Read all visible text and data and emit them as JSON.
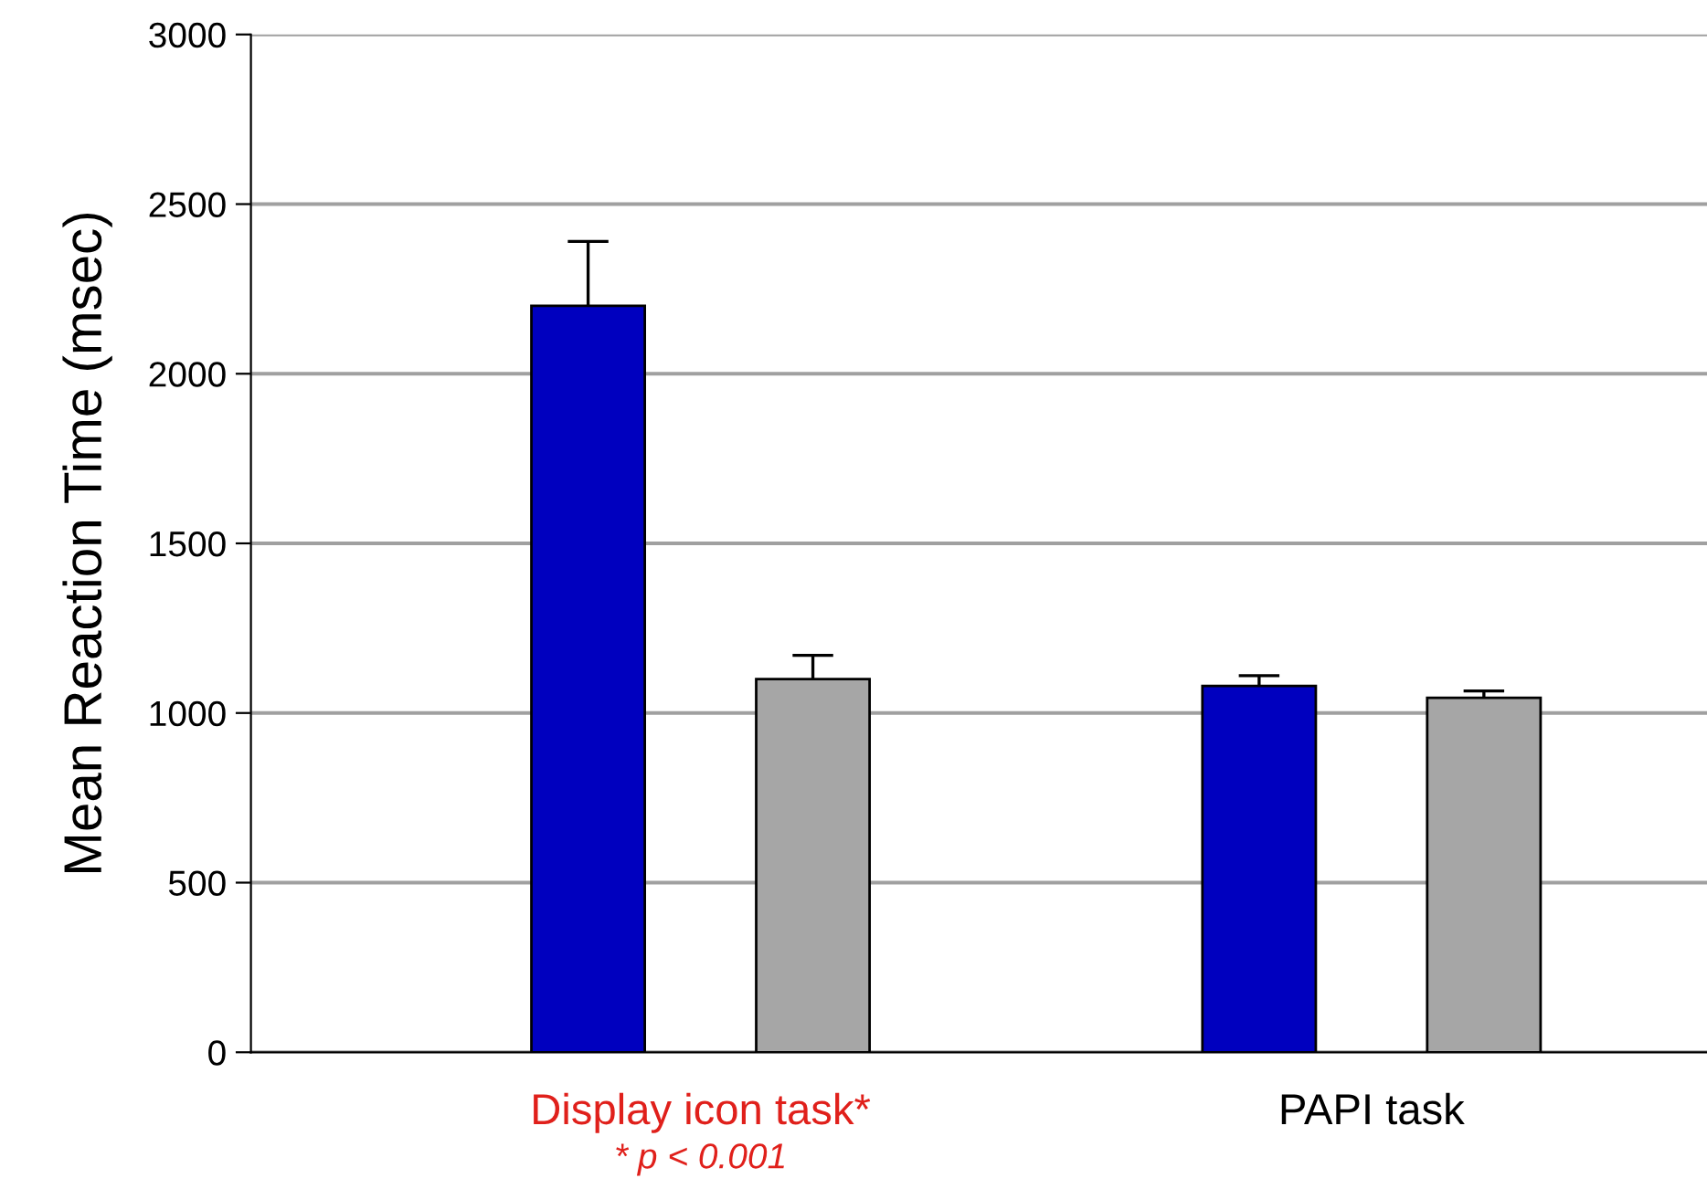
{
  "chart_data": {
    "type": "bar",
    "ylabel": "Mean Reaction Time (msec)",
    "categories": [
      "Display icon task*",
      "PAPI task"
    ],
    "series": [
      {
        "color": "#0000bf",
        "values": [
          2200,
          1080
        ],
        "errors": [
          [
            2200,
            2390
          ],
          [
            1080,
            1110
          ]
        ]
      },
      {
        "color": "#a6a6a6",
        "values": [
          1100,
          1045
        ],
        "errors": [
          [
            1100,
            1170
          ],
          [
            1045,
            1065
          ]
        ]
      }
    ],
    "ylim": [
      0,
      3000
    ],
    "yticks": [
      0,
      500,
      1000,
      1500,
      2000,
      2500,
      3000
    ],
    "grid": "y",
    "annotations": [
      "* p < 0.001"
    ]
  }
}
